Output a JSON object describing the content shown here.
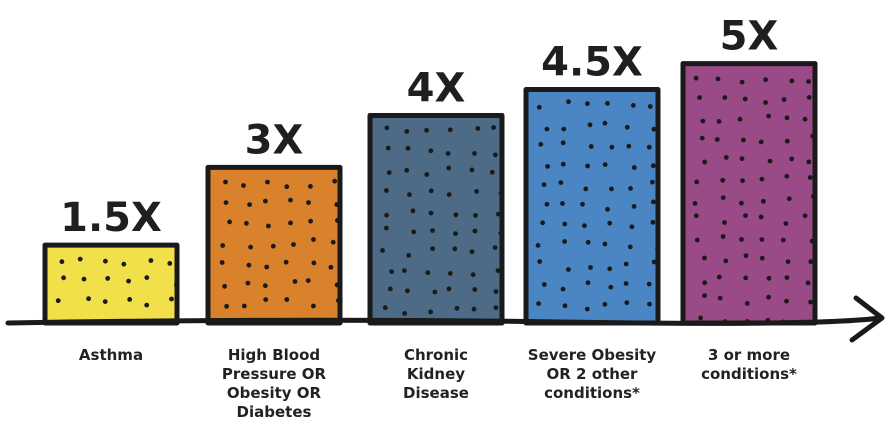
{
  "chart_data": {
    "type": "bar",
    "title": "",
    "xlabel": "",
    "ylabel": "",
    "categories": [
      "Asthma",
      "High Blood Pressure OR Obesity OR Diabetes",
      "Chronic Kidney Disease",
      "Severe Obesity OR 2 other conditions*",
      "3 or more conditions*"
    ],
    "category_lines": [
      [
        "Asthma"
      ],
      [
        "High Blood",
        "Pressure OR",
        "Obesity OR",
        "Diabetes"
      ],
      [
        "Chronic",
        "Kidney",
        "Disease"
      ],
      [
        "Severe Obesity",
        "OR 2 other",
        "conditions*"
      ],
      [
        "3 or more",
        "conditions*"
      ]
    ],
    "values": [
      1.5,
      3,
      4,
      4.5,
      5
    ],
    "data_labels": [
      "1.5X",
      "3X",
      "4X",
      "4.5X",
      "5X"
    ],
    "colors": [
      "#f2e04a",
      "#d9822b",
      "#4d6b86",
      "#4a86c4",
      "#9a4a86"
    ],
    "ylim": [
      0,
      5.3
    ],
    "grid": false,
    "legend": "none"
  }
}
